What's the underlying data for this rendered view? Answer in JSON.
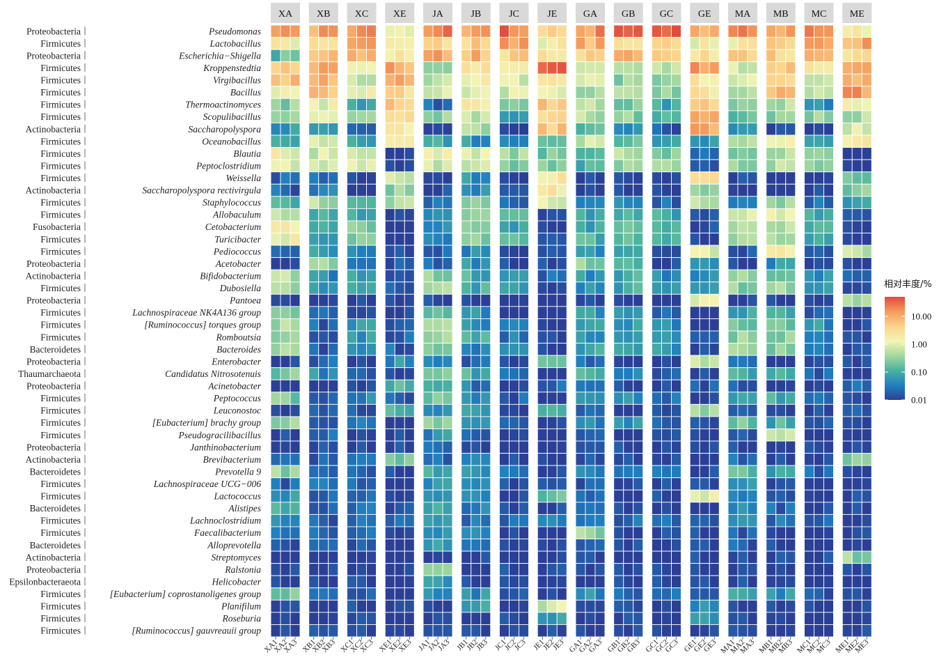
{
  "chart_data": {
    "type": "heatmap",
    "title": "",
    "legend_title": "相对丰度/%",
    "legend_ticks": [
      "10.00",
      "1.00",
      "0.10",
      "0.01"
    ],
    "legend_tick_values": [
      10,
      1,
      0.1,
      0.01
    ],
    "color_scale": {
      "type": "log10",
      "domain": [
        0.01,
        50
      ],
      "colors": [
        "#2b3f96",
        "#1f7fbf",
        "#4bb39f",
        "#a5d8a0",
        "#f3f4b4",
        "#fcd48c",
        "#f59a5b",
        "#e04a3c"
      ]
    },
    "groups": [
      "XA",
      "XB",
      "XC",
      "XE",
      "JA",
      "JB",
      "JC",
      "JE",
      "GA",
      "GB",
      "GC",
      "GE",
      "MA",
      "MB",
      "MC",
      "ME"
    ],
    "samples": [
      [
        "XA1",
        "XA2",
        "XA3"
      ],
      [
        "XB1",
        "XB2",
        "XB3"
      ],
      [
        "XC1",
        "XC2",
        "XC3"
      ],
      [
        "XE1",
        "XE2",
        "XE3"
      ],
      [
        "JA1",
        "JA2",
        "JA3"
      ],
      [
        "JB1",
        "JB2",
        "JB3"
      ],
      [
        "JC1",
        "JC2",
        "JC3"
      ],
      [
        "JE1",
        "JE2",
        "JE3"
      ],
      [
        "GA1",
        "GA2",
        "GA3"
      ],
      [
        "GB1",
        "GB2",
        "GB3"
      ],
      [
        "GC1",
        "GC2",
        "GC3"
      ],
      [
        "GE1",
        "GE2",
        "GE3"
      ],
      [
        "MA1",
        "MA2",
        "MA3"
      ],
      [
        "MB1",
        "MB2",
        "MB3"
      ],
      [
        "MC1",
        "MC2",
        "MC3"
      ],
      [
        "ME1",
        "ME2",
        "ME3"
      ]
    ],
    "rows": [
      {
        "phylum": "Proteobacteria",
        "genus": "Pseudomonas"
      },
      {
        "phylum": "Firmicutes",
        "genus": "Lactobacillus"
      },
      {
        "phylum": "Proteobacteria",
        "genus": "Escherichia−Shigella"
      },
      {
        "phylum": "Firmicutes",
        "genus": "Kroppenstedtia"
      },
      {
        "phylum": "Firmicutes",
        "genus": "Virgibacillus"
      },
      {
        "phylum": "Firmicutes",
        "genus": "Bacillus"
      },
      {
        "phylum": "Firmicutes",
        "genus": "Thermoactinomyces"
      },
      {
        "phylum": "Firmicutes",
        "genus": "Scopulibacillus"
      },
      {
        "phylum": "Actinobacteria",
        "genus": "Saccharopolyspora"
      },
      {
        "phylum": "Firmicutes",
        "genus": "Oceanobacillus"
      },
      {
        "phylum": "Firmicutes",
        "genus": "Blautia"
      },
      {
        "phylum": "Firmicutes",
        "genus": "Peptoclostridium"
      },
      {
        "phylum": "Firmicutes",
        "genus": "Weissella"
      },
      {
        "phylum": "Actinobacteria",
        "genus": "Saccharopolyspora rectivirgula"
      },
      {
        "phylum": "Firmicutes",
        "genus": "Staphylococcus"
      },
      {
        "phylum": "Firmicutes",
        "genus": "Allobaculum"
      },
      {
        "phylum": "Fusobacteria",
        "genus": "Cetobacterium"
      },
      {
        "phylum": "Firmicutes",
        "genus": "Turicibacter"
      },
      {
        "phylum": "Firmicutes",
        "genus": "Pediococcus"
      },
      {
        "phylum": "Proteobacteria",
        "genus": "Acetobacter"
      },
      {
        "phylum": "Actinobacteria",
        "genus": "Bifidobacterium"
      },
      {
        "phylum": "Firmicutes",
        "genus": "Dubosiella"
      },
      {
        "phylum": "Proteobacteria",
        "genus": "Pantoea"
      },
      {
        "phylum": "Firmicutes",
        "genus": "Lachnospiraceae NK4A136 group"
      },
      {
        "phylum": "Firmicutes",
        "genus": "[Ruminococcus] torques group"
      },
      {
        "phylum": "Firmicutes",
        "genus": "Romboutsia"
      },
      {
        "phylum": "Bacteroidetes",
        "genus": "Bacteroides"
      },
      {
        "phylum": "Proteobacteria",
        "genus": "Enterobacter"
      },
      {
        "phylum": "Thaumarchaeota",
        "genus": "Candidatus Nitrosotenuis"
      },
      {
        "phylum": "Proteobacteria",
        "genus": "Acinetobacter"
      },
      {
        "phylum": "Firmicutes",
        "genus": "Peptococcus"
      },
      {
        "phylum": "Firmicutes",
        "genus": "Leuconostoc"
      },
      {
        "phylum": "Firmicutes",
        "genus": "[Eubacterium] brachy group"
      },
      {
        "phylum": "Firmicutes",
        "genus": "Pseudogracilibacillus"
      },
      {
        "phylum": "Proteobacteria",
        "genus": "Janthinobacterium"
      },
      {
        "phylum": "Actinobacteria",
        "genus": "Brevibacterium"
      },
      {
        "phylum": "Bacteroidetes",
        "genus": "Prevotella 9"
      },
      {
        "phylum": "Firmicutes",
        "genus": "Lachnospiraceae UCG−006"
      },
      {
        "phylum": "Firmicutes",
        "genus": "Lactococcus"
      },
      {
        "phylum": "Bacteroidetes",
        "genus": "Alistipes"
      },
      {
        "phylum": "Firmicutes",
        "genus": "Lachnoclostridium"
      },
      {
        "phylum": "Firmicutes",
        "genus": "Faecalibacterium"
      },
      {
        "phylum": "Bacteroidetes",
        "genus": "Alloprevotella"
      },
      {
        "phylum": "Actinobacteria",
        "genus": "Streptomyces"
      },
      {
        "phylum": "Proteobacteria",
        "genus": "Ralstonia"
      },
      {
        "phylum": "Epsilonbacteraeota",
        "genus": "Helicobacter"
      },
      {
        "phylum": "Firmicutes",
        "genus": "[Eubacterium] coprostanoligenes group"
      },
      {
        "phylum": "Firmicutes",
        "genus": "Planifilum"
      },
      {
        "phylum": "Firmicutes",
        "genus": "Roseburia"
      },
      {
        "phylum": "Firmicutes",
        "genus": "[Ruminococcus] gauvreauii group"
      }
    ],
    "group_levels": [
      [
        25,
        1.5,
        0.15,
        4,
        8,
        1,
        0.3,
        0.5,
        0.05,
        0.1,
        1.2,
        0.8,
        0.02,
        0.02,
        0.1,
        0.8,
        1.2,
        1.2,
        0.02,
        0.01,
        0.5,
        0.5,
        0.01,
        0.3,
        0.4,
        0.3,
        0.3,
        0.01,
        0.2,
        0.01,
        0.2,
        0.01,
        0.3,
        0.01,
        0.01,
        0.02,
        0.3,
        0.02,
        0.05,
        0.1,
        0.05,
        0.02,
        0.02,
        0.01,
        0.01,
        0.01,
        0.2,
        0.01,
        0.01,
        0.01
      ],
      [
        10,
        2.5,
        5,
        8,
        10,
        6,
        1,
        1,
        0.06,
        1,
        0.8,
        0.8,
        0.03,
        0.03,
        0.5,
        0.1,
        0.1,
        0.1,
        0.05,
        0.3,
        0.05,
        0.05,
        0.01,
        0.02,
        0.02,
        0.02,
        0.02,
        0.02,
        0.05,
        0.01,
        0.02,
        0.02,
        0.02,
        0.02,
        0.01,
        0.02,
        0.02,
        0.02,
        0.02,
        0.02,
        0.02,
        0.02,
        0.02,
        0.01,
        0.01,
        0.01,
        0.02,
        0.01,
        0.01,
        0.01
      ],
      [
        20,
        20,
        12,
        1.5,
        0.5,
        1,
        0.1,
        0.3,
        0.02,
        0.1,
        1,
        0.7,
        0.01,
        0.01,
        0.1,
        0.1,
        0.2,
        0.2,
        0.03,
        0.03,
        0.1,
        0.1,
        0.01,
        0.02,
        0.05,
        0.05,
        0.05,
        0.01,
        0.02,
        0.01,
        0.05,
        0.02,
        0.05,
        0.01,
        0.01,
        0.02,
        0.02,
        0.02,
        0.02,
        0.02,
        0.02,
        0.02,
        0.02,
        0.01,
        0.01,
        0.01,
        0.02,
        0.01,
        0.01,
        0.01
      ],
      [
        1.5,
        2,
        2,
        10,
        8,
        3,
        6,
        5,
        1.5,
        3,
        0.01,
        0.01,
        0.8,
        0.3,
        0.5,
        0.01,
        0.01,
        0.01,
        0.02,
        0.02,
        0.02,
        0.02,
        0.01,
        0.01,
        0.02,
        0.02,
        0.02,
        0.05,
        0.01,
        0.1,
        0.02,
        0.1,
        0.01,
        0.01,
        0.01,
        0.2,
        0.01,
        0.01,
        0.01,
        0.01,
        0.02,
        0.01,
        0.01,
        0.01,
        0.01,
        0.01,
        0.01,
        0.01,
        0.01,
        0.01
      ],
      [
        20,
        3,
        12,
        0.5,
        0.6,
        0.8,
        0.02,
        0.3,
        0.02,
        0.1,
        1.5,
        0.8,
        0.01,
        0.01,
        0.02,
        0.05,
        0.05,
        0.05,
        0.02,
        0.02,
        0.3,
        0.4,
        0.01,
        0.15,
        0.3,
        0.3,
        0.15,
        0.05,
        0.2,
        0.1,
        0.2,
        0.05,
        0.2,
        0.05,
        0.02,
        0.02,
        0.1,
        0.05,
        0.05,
        0.1,
        0.05,
        0.05,
        0.05,
        0.01,
        0.5,
        0.05,
        0.05,
        0.01,
        0.01,
        0.02
      ],
      [
        15,
        4,
        8,
        2,
        1.5,
        1,
        2,
        0.5,
        0.5,
        0.05,
        0.7,
        0.5,
        0.05,
        0.05,
        0.3,
        0.2,
        0.3,
        0.3,
        0.05,
        0.05,
        0.1,
        0.1,
        0.01,
        0.05,
        0.05,
        0.1,
        0.05,
        0.02,
        0.1,
        0.03,
        0.05,
        0.05,
        0.05,
        0.02,
        0.01,
        0.05,
        0.05,
        0.03,
        0.03,
        0.03,
        0.03,
        0.03,
        0.03,
        0.01,
        0.01,
        0.01,
        0.05,
        0.1,
        0.01,
        0.01
      ],
      [
        25,
        12,
        4,
        3,
        0.8,
        0.8,
        0.3,
        0.1,
        0.01,
        0.05,
        0.4,
        0.2,
        0.01,
        0.01,
        0.03,
        0.1,
        0.1,
        0.1,
        0.01,
        0.01,
        0.05,
        0.05,
        0.01,
        0.01,
        0.03,
        0.03,
        0.03,
        0.01,
        0.02,
        0.01,
        0.02,
        0.01,
        0.02,
        0.01,
        0.01,
        0.01,
        0.02,
        0.01,
        0.01,
        0.01,
        0.02,
        0.01,
        0.01,
        0.01,
        0.01,
        0.01,
        0.02,
        0.01,
        0.01,
        0.01
      ],
      [
        5,
        1.5,
        2,
        30,
        1.5,
        1.5,
        6,
        5,
        5,
        0.1,
        0.2,
        0.2,
        2,
        2,
        0.8,
        0.01,
        0.01,
        0.01,
        0.01,
        0.01,
        0.02,
        0.01,
        0.01,
        0.01,
        0.01,
        0.01,
        0.01,
        0.3,
        0.01,
        0.02,
        0.01,
        0.15,
        0.01,
        0.01,
        0.01,
        0.01,
        0.01,
        0.01,
        0.2,
        0.01,
        0.05,
        0.01,
        0.01,
        0.01,
        0.01,
        0.01,
        0.01,
        0.8,
        0.05,
        0.01
      ],
      [
        15,
        8,
        4,
        1,
        1.5,
        0.5,
        0.5,
        0.5,
        0.1,
        0.7,
        0.1,
        0.1,
        0.01,
        0.01,
        0.05,
        0.1,
        0.1,
        0.1,
        0.05,
        0.3,
        0.05,
        0.05,
        0.01,
        0.05,
        0.05,
        0.05,
        0.1,
        0.02,
        0.1,
        0.02,
        0.05,
        0.02,
        0.05,
        0.02,
        0.01,
        0.02,
        0.05,
        0.02,
        0.02,
        0.02,
        0.05,
        0.3,
        0.02,
        0.01,
        0.01,
        0.01,
        0.05,
        0.01,
        0.01,
        0.01
      ],
      [
        25,
        4,
        12,
        0.5,
        0.3,
        0.5,
        0.2,
        0.3,
        0.05,
        0.15,
        0.5,
        0.3,
        0.01,
        0.01,
        0.03,
        0.1,
        0.2,
        0.2,
        0.1,
        0.1,
        0.1,
        0.1,
        0.01,
        0.05,
        0.05,
        0.05,
        0.1,
        0.01,
        0.05,
        0.01,
        0.05,
        0.01,
        0.05,
        0.01,
        0.01,
        0.01,
        0.02,
        0.01,
        0.01,
        0.01,
        0.02,
        0.01,
        0.01,
        0.01,
        0.01,
        0.01,
        0.02,
        0.01,
        0.01,
        0.01
      ],
      [
        30,
        3,
        3,
        0.5,
        0.3,
        0.3,
        0.1,
        0.1,
        0.02,
        0.1,
        0.3,
        0.3,
        0.01,
        0.01,
        0.02,
        0.1,
        0.1,
        0.1,
        0.02,
        0.01,
        0.05,
        0.05,
        0.01,
        0.02,
        0.05,
        0.05,
        0.05,
        0.01,
        0.02,
        0.01,
        0.02,
        0.01,
        0.02,
        0.01,
        0.01,
        0.01,
        0.02,
        0.01,
        0.01,
        0.01,
        0.02,
        0.01,
        0.01,
        0.01,
        0.01,
        0.01,
        0.02,
        0.01,
        0.01,
        0.01
      ],
      [
        8,
        1.5,
        3,
        15,
        2,
        2,
        5,
        10,
        8,
        0.05,
        0.02,
        0.02,
        2,
        0.3,
        0.5,
        0.01,
        0.01,
        0.01,
        1,
        0.05,
        0.05,
        0.05,
        1.5,
        0.01,
        0.01,
        0.01,
        0.01,
        0.8,
        0.01,
        0.02,
        0.01,
        0.3,
        0.01,
        0.01,
        0.01,
        0.01,
        0.01,
        0.01,
        1,
        0.01,
        0.02,
        0.01,
        0.01,
        0.01,
        0.01,
        0.01,
        0.01,
        0.05,
        0.05,
        0.01
      ],
      [
        20,
        1.5,
        6,
        0.6,
        1,
        0.5,
        0.3,
        0.2,
        0.05,
        0.7,
        0.3,
        0.3,
        0.01,
        0.01,
        0.05,
        0.6,
        0.5,
        0.5,
        0.02,
        0.01,
        0.3,
        0.3,
        0.01,
        0.1,
        0.2,
        0.3,
        0.3,
        0.02,
        0.1,
        0.02,
        0.1,
        0.02,
        0.2,
        0.02,
        0.01,
        0.02,
        0.2,
        0.05,
        0.05,
        0.05,
        0.05,
        0.02,
        0.02,
        0.01,
        0.01,
        0.01,
        0.1,
        0.01,
        0.01,
        0.01
      ],
      [
        15,
        5,
        4,
        5,
        5,
        6,
        0.5,
        0.3,
        0.01,
        2,
        0.5,
        0.5,
        0.01,
        0.01,
        0.3,
        0.8,
        0.6,
        0.6,
        1.5,
        0.05,
        0.3,
        0.3,
        0.01,
        0.1,
        0.2,
        0.3,
        0.2,
        0.01,
        0.1,
        0.01,
        0.1,
        0.01,
        0.1,
        0.5,
        0.01,
        0.01,
        0.1,
        0.02,
        0.02,
        0.02,
        0.03,
        0.01,
        0.01,
        0.01,
        0.01,
        0.01,
        0.05,
        0.01,
        0.01,
        0.01
      ],
      [
        25,
        15,
        6,
        2,
        0.5,
        0.5,
        0.05,
        0.3,
        0.01,
        0.1,
        0.3,
        0.2,
        0.01,
        0.01,
        0.03,
        0.1,
        0.1,
        0.1,
        0.02,
        0.01,
        0.05,
        0.05,
        0.01,
        0.02,
        0.05,
        0.03,
        0.03,
        0.01,
        0.02,
        0.01,
        0.02,
        0.01,
        0.02,
        0.01,
        0.01,
        0.01,
        0.02,
        0.01,
        0.01,
        0.01,
        0.02,
        0.01,
        0.01,
        0.01,
        0.01,
        0.01,
        0.02,
        0.01,
        0.01,
        0.01
      ],
      [
        1.5,
        10,
        3,
        15,
        10,
        15,
        1.5,
        0.5,
        1,
        1.5,
        0.01,
        0.01,
        0.2,
        0.2,
        0.05,
        0.01,
        0.01,
        0.01,
        0.5,
        0.01,
        0.02,
        0.01,
        0.5,
        0.01,
        0.01,
        0.01,
        0.01,
        0.01,
        0.01,
        0.02,
        0.01,
        0.02,
        0.01,
        0.01,
        0.01,
        0.2,
        0.01,
        0.01,
        0.01,
        0.01,
        0.01,
        0.01,
        0.01,
        0.3,
        0.01,
        0.01,
        0.01,
        0.01,
        0.01,
        0.01
      ]
    ]
  }
}
